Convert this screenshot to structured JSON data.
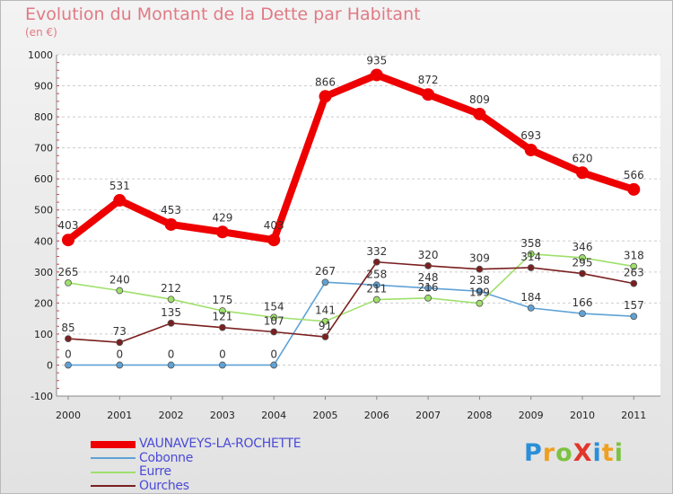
{
  "title": "Evolution du Montant de la Dette par Habitant",
  "unit": "(en €)",
  "logo": {
    "text": "ProXiti",
    "letters": [
      {
        "ch": "P",
        "color": "#2a8fd8"
      },
      {
        "ch": "r",
        "color": "#f0a020"
      },
      {
        "ch": "o",
        "color": "#7cc242"
      },
      {
        "ch": "X",
        "color": "#e2352b"
      },
      {
        "ch": "i",
        "color": "#2a8fd8"
      },
      {
        "ch": "t",
        "color": "#f0a020"
      },
      {
        "ch": "i",
        "color": "#7cc242"
      }
    ]
  },
  "chart_data": {
    "type": "line",
    "title": "Evolution du Montant de la Dette par Habitant",
    "subtitle": "(en €)",
    "x": [
      "2000",
      "2001",
      "2002",
      "2003",
      "2004",
      "2005",
      "2006",
      "2007",
      "2008",
      "2009",
      "2010",
      "2011"
    ],
    "ylim": [
      -100,
      1000
    ],
    "yticks": [
      -100,
      0,
      100,
      200,
      300,
      400,
      500,
      600,
      700,
      800,
      900,
      1000
    ],
    "grid": "horizontal dashed",
    "legend_position": "bottom-left",
    "series": [
      {
        "name": "VAUNAVEYS-LA-ROCHETTE",
        "color": "#ee0000",
        "values": [
          403,
          531,
          453,
          429,
          403,
          866,
          935,
          872,
          809,
          693,
          620,
          566
        ]
      },
      {
        "name": "Cobonne",
        "color": "#5fa2d6",
        "values": [
          0,
          0,
          0,
          0,
          0,
          267,
          258,
          248,
          238,
          184,
          166,
          157
        ]
      },
      {
        "name": "Eurre",
        "color": "#9ee06a",
        "values": [
          265,
          240,
          212,
          175,
          154,
          141,
          211,
          216,
          199,
          358,
          346,
          318
        ]
      },
      {
        "name": "Ourches",
        "color": "#7a1f1f",
        "values": [
          85,
          73,
          135,
          121,
          107,
          91,
          332,
          320,
          309,
          314,
          295,
          263
        ]
      }
    ]
  }
}
